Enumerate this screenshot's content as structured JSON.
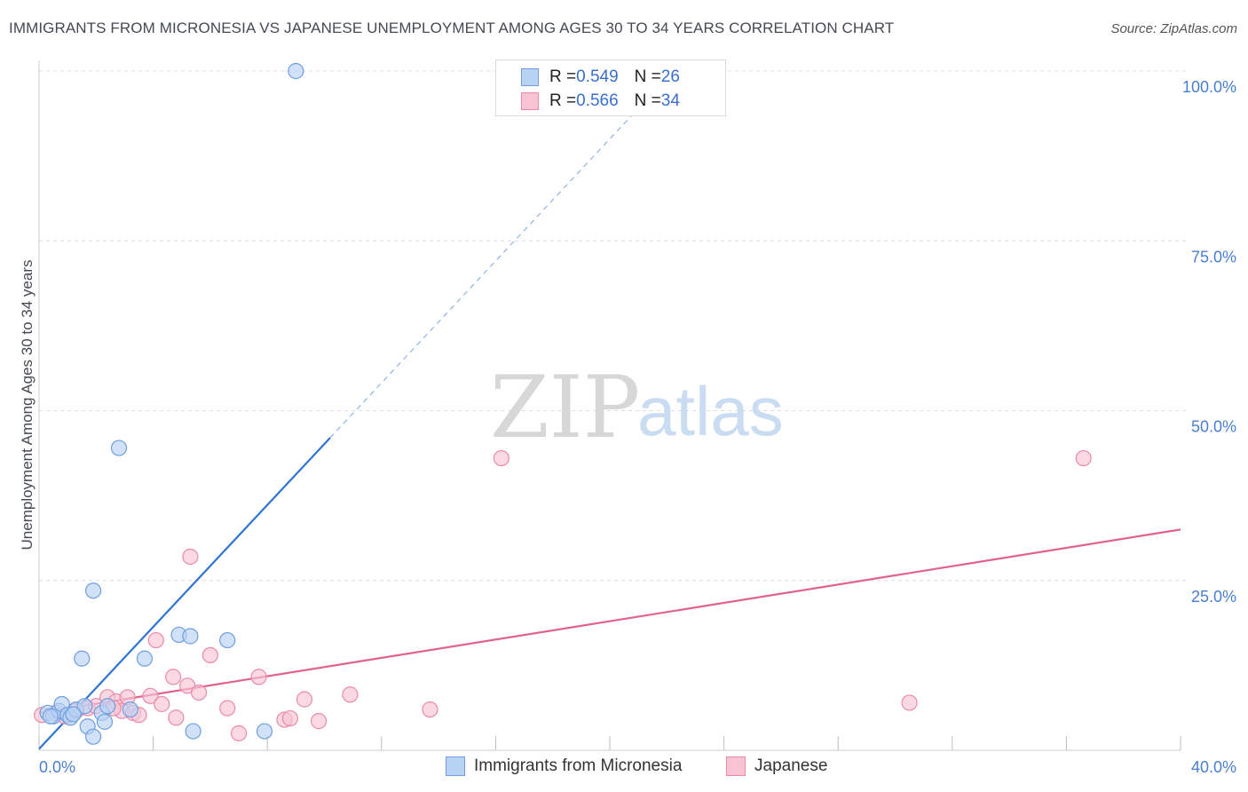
{
  "header": {
    "title": "IMMIGRANTS FROM MICRONESIA VS JAPANESE UNEMPLOYMENT AMONG AGES 30 TO 34 YEARS CORRELATION CHART",
    "source": "Source: ZipAtlas.com"
  },
  "watermark": {
    "zip": "ZIP",
    "atlas": "atlas"
  },
  "legend_top": {
    "rows": [
      {
        "r_label": "R = ",
        "r_value": "0.549",
        "n_label": "N = ",
        "n_value": "26"
      },
      {
        "r_label": "R = ",
        "r_value": "0.566",
        "n_label": "N = ",
        "n_value": "34"
      }
    ]
  },
  "legend_bottom": {
    "items": [
      {
        "label": "Immigrants from Micronesia"
      },
      {
        "label": "Japanese"
      }
    ]
  },
  "colors": {
    "blue_fill": "#b8d2f4",
    "blue_stroke": "#6f9fe0",
    "blue_line": "#2f74d0",
    "pink_fill": "#f8c4d4",
    "pink_stroke": "#eb8aa8",
    "pink_line": "#e0628e",
    "grid": "#dcdcdc",
    "tick_text": "#4a7fd0"
  },
  "chart_data": {
    "type": "scatter",
    "title": "IMMIGRANTS FROM MICRONESIA VS JAPANESE UNEMPLOYMENT AMONG AGES 30 TO 34 YEARS CORRELATION CHART",
    "xlabel": "",
    "ylabel": "Unemployment Among Ages 30 to 34 years",
    "xlim": [
      0,
      40
    ],
    "ylim": [
      0,
      100
    ],
    "x_tick_labels": [
      "0.0%",
      "40.0%"
    ],
    "y_ticks": [
      25,
      50,
      75,
      100
    ],
    "y_tick_labels": [
      "25.0%",
      "50.0%",
      "75.0%",
      "100.0%"
    ],
    "series": [
      {
        "name": "Immigrants from Micronesia",
        "r": 0.549,
        "n": 26,
        "points": [
          [
            0.3,
            5.5
          ],
          [
            0.5,
            5.0
          ],
          [
            0.7,
            5.8
          ],
          [
            0.8,
            6.8
          ],
          [
            1.0,
            5.2
          ],
          [
            1.1,
            4.8
          ],
          [
            1.3,
            6.0
          ],
          [
            1.5,
            13.5
          ],
          [
            1.6,
            6.5
          ],
          [
            1.7,
            3.5
          ],
          [
            1.9,
            2.0
          ],
          [
            2.2,
            5.5
          ],
          [
            2.3,
            4.2
          ],
          [
            1.9,
            23.5
          ],
          [
            2.8,
            44.5
          ],
          [
            2.4,
            6.5
          ],
          [
            3.2,
            6.0
          ],
          [
            3.7,
            13.5
          ],
          [
            4.9,
            17.0
          ],
          [
            5.3,
            16.8
          ],
          [
            5.4,
            2.8
          ],
          [
            6.6,
            16.2
          ],
          [
            7.9,
            2.8
          ],
          [
            9.0,
            100.0
          ],
          [
            0.4,
            5.0
          ],
          [
            1.2,
            5.3
          ]
        ],
        "trend": {
          "x0": 0.0,
          "y0": 0.2,
          "x1": 10.2,
          "y1": 46.0,
          "dashed_to_x": 21.5
        }
      },
      {
        "name": "Japanese",
        "r": 0.566,
        "n": 34,
        "points": [
          [
            0.1,
            5.2
          ],
          [
            0.6,
            5.5
          ],
          [
            0.9,
            5.0
          ],
          [
            1.3,
            5.8
          ],
          [
            1.7,
            6.2
          ],
          [
            2.0,
            6.5
          ],
          [
            2.4,
            7.8
          ],
          [
            2.7,
            7.2
          ],
          [
            2.9,
            5.8
          ],
          [
            3.1,
            7.8
          ],
          [
            3.3,
            5.5
          ],
          [
            3.5,
            5.2
          ],
          [
            3.9,
            8.0
          ],
          [
            4.1,
            16.2
          ],
          [
            4.3,
            6.8
          ],
          [
            4.7,
            10.8
          ],
          [
            4.8,
            4.8
          ],
          [
            5.2,
            9.5
          ],
          [
            5.3,
            28.5
          ],
          [
            5.6,
            8.5
          ],
          [
            6.0,
            14.0
          ],
          [
            6.6,
            6.2
          ],
          [
            7.0,
            2.5
          ],
          [
            7.7,
            10.8
          ],
          [
            8.6,
            4.5
          ],
          [
            8.8,
            4.7
          ],
          [
            9.3,
            7.5
          ],
          [
            9.8,
            4.3
          ],
          [
            10.9,
            8.2
          ],
          [
            13.7,
            6.0
          ],
          [
            16.2,
            43.0
          ],
          [
            30.5,
            7.0
          ],
          [
            36.6,
            43.0
          ],
          [
            2.6,
            6.2
          ]
        ],
        "trend": {
          "x0": 0.0,
          "y0": 5.5,
          "x1": 40.0,
          "y1": 32.5
        }
      }
    ]
  }
}
